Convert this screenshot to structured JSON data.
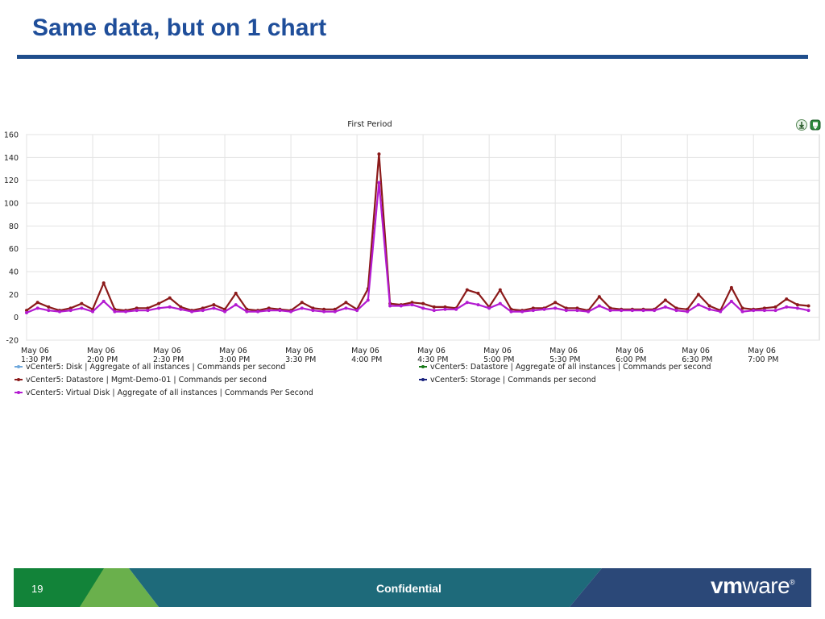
{
  "slide": {
    "title": "Same data, but on 1 chart",
    "page_number": "19",
    "footer_label": "Confidential",
    "brand_bold": "vm",
    "brand_rest": "ware",
    "brand_mark": "®"
  },
  "colors": {
    "title": "#1f4e9a",
    "rule": "#1f4e8c",
    "footer_dark_green": "#128339",
    "footer_light_green": "#6ab04c",
    "footer_teal": "#1e6a7a",
    "footer_navy": "#2b4878"
  },
  "icons": [
    "download-icon",
    "export-icon"
  ],
  "chart_data": {
    "type": "line",
    "title": "First Period",
    "ylim": [
      -20,
      160
    ],
    "yticks": [
      -20,
      0,
      20,
      40,
      60,
      80,
      100,
      120,
      140,
      160
    ],
    "grid": true,
    "legend_position": "bottom",
    "xtick_labels": [
      [
        "May 06",
        "1:30 PM"
      ],
      [
        "May 06",
        "2:00 PM"
      ],
      [
        "May 06",
        "2:30 PM"
      ],
      [
        "May 06",
        "3:00 PM"
      ],
      [
        "May 06",
        "3:30 PM"
      ],
      [
        "May 06",
        "4:00 PM"
      ],
      [
        "May 06",
        "4:30 PM"
      ],
      [
        "May 06",
        "5:00 PM"
      ],
      [
        "May 06",
        "5:30 PM"
      ],
      [
        "May 06",
        "6:00 PM"
      ],
      [
        "May 06",
        "6:30 PM"
      ],
      [
        "May 06",
        "7:00 PM"
      ]
    ],
    "x_start": "13:30",
    "x_step_minutes": 5,
    "series": [
      {
        "name": "vCenter5: Disk | Aggregate of all instances | Commands per second",
        "color": "#6fa8dc",
        "values": []
      },
      {
        "name": "vCenter5: Datastore | Aggregate of all instances | Commands per second",
        "color": "#1a7a1a",
        "values": []
      },
      {
        "name": "vCenter5: Datastore | Mgmt-Demo-01 | Commands per second",
        "color": "#8b1a1a",
        "values": [
          6,
          13,
          9,
          6,
          8,
          12,
          7,
          30,
          7,
          6,
          8,
          8,
          12,
          17,
          9,
          6,
          8,
          11,
          7,
          21,
          7,
          6,
          8,
          7,
          6,
          13,
          8,
          7,
          7,
          13,
          7,
          25,
          143,
          12,
          11,
          13,
          12,
          9,
          9,
          8,
          24,
          21,
          9,
          24,
          7,
          6,
          8,
          8,
          13,
          8,
          8,
          6,
          18,
          8,
          7,
          7,
          7,
          7,
          15,
          8,
          7,
          20,
          10,
          6,
          26,
          8,
          7,
          8,
          9,
          16,
          11,
          10
        ]
      },
      {
        "name": "vCenter5: Storage | Commands per second",
        "color": "#1a237e",
        "values": []
      },
      {
        "name": "vCenter5: Virtual Disk | Aggregate of all instances | Commands Per Second",
        "color": "#b31bd1",
        "values": [
          4,
          8,
          6,
          5,
          6,
          8,
          5,
          14,
          5,
          5,
          6,
          6,
          8,
          9,
          7,
          5,
          6,
          8,
          5,
          11,
          5,
          5,
          6,
          6,
          5,
          8,
          6,
          5,
          5,
          8,
          6,
          15,
          118,
          10,
          10,
          11,
          8,
          6,
          7,
          7,
          13,
          11,
          8,
          12,
          5,
          5,
          6,
          7,
          8,
          6,
          6,
          5,
          10,
          6,
          6,
          6,
          6,
          6,
          9,
          6,
          5,
          11,
          7,
          5,
          14,
          5,
          6,
          6,
          6,
          9,
          8,
          6
        ]
      }
    ]
  }
}
